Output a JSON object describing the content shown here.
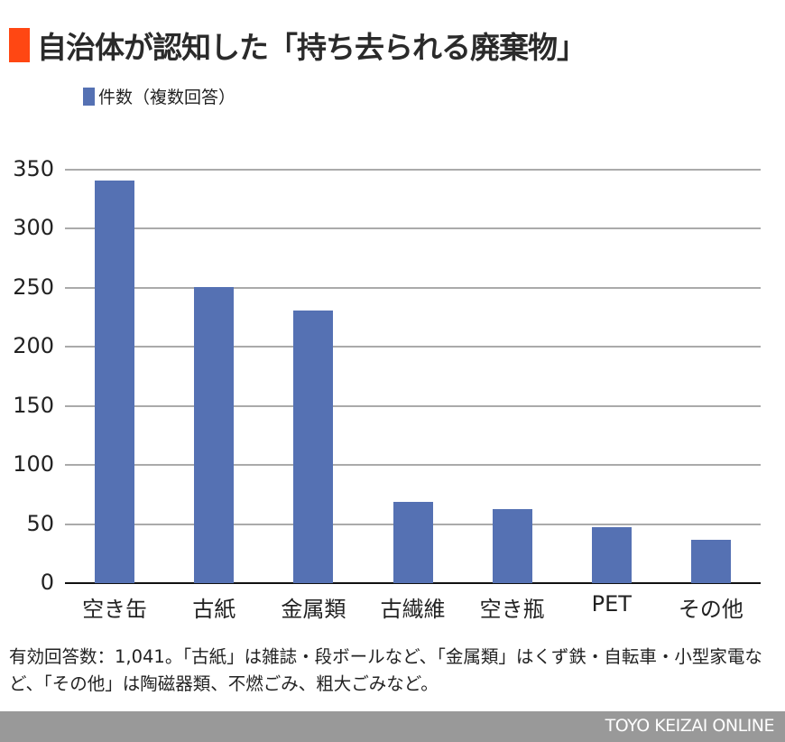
{
  "header": {
    "title": "自治体が認知した「持ち去られる廃棄物」",
    "title_marker_color": "#ff4713"
  },
  "legend": {
    "label": "件数（複数回答）",
    "color": "#5571b3"
  },
  "chart_data": {
    "type": "bar",
    "title": "自治体が認知した「持ち去られる廃棄物」",
    "xlabel": "",
    "ylabel": "",
    "categories": [
      "空き缶",
      "古紙",
      "金属類",
      "古繊維",
      "空き瓶",
      "PET",
      "その他"
    ],
    "series": [
      {
        "name": "件数（複数回答）",
        "color": "#5571b3",
        "values": [
          341,
          251,
          231,
          69,
          63,
          47,
          37
        ]
      }
    ],
    "ylim": [
      0,
      350
    ],
    "yticks": [
      0,
      50,
      100,
      150,
      200,
      250,
      300,
      350
    ],
    "grid": true,
    "legend_position": "top-left"
  },
  "axis": {
    "yticks": [
      "350",
      "300",
      "250",
      "200",
      "150",
      "100",
      "50",
      "0"
    ]
  },
  "note": "有効回答数：1,041。「古紙」は雑誌・段ボールなど、「金属類」はくず鉄・自転車・小型家電など、「その他」は陶磁器類、不燃ごみ、粗大ごみなど。",
  "footer": {
    "brand": "TOYO KEIZAI ONLINE"
  }
}
